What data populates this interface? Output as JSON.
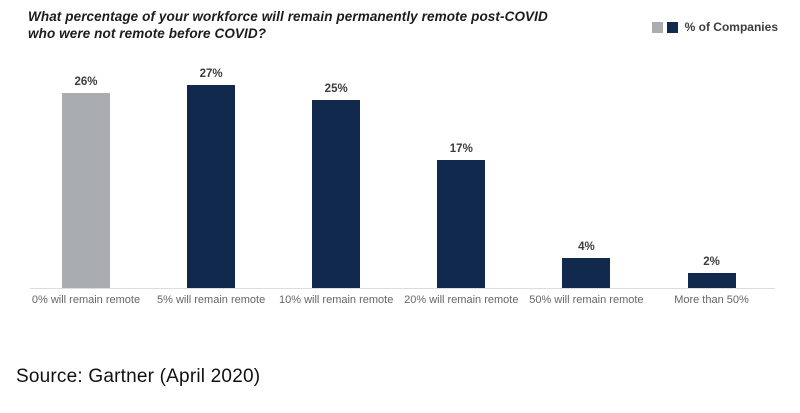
{
  "header": {
    "title_line1": "What percentage of your workforce will remain permanently remote post-COVID",
    "title_line2": "who were not remote before COVID?"
  },
  "legend": {
    "label": "% of Companies",
    "swatch_gray_color": "#a9adb0",
    "swatch_navy_color": "#12294e"
  },
  "footer": {
    "source": "Source: Gartner (April 2020)"
  },
  "colors": {
    "bar_navy": "#12294e",
    "bar_gray": "#a9adb0",
    "axis_line": "#dcdcdc",
    "value_label": "#3d3d3d",
    "category_label": "#666666"
  },
  "chart_data": {
    "type": "bar",
    "title": "What percentage of your workforce will remain permanently remote post-COVID who were not remote before COVID?",
    "categories": [
      "0% will remain remote",
      "5% will remain remote",
      "10% will remain remote",
      "20% will remain remote",
      "50% will remain remote",
      "More than 50%"
    ],
    "values": [
      26,
      27,
      25,
      17,
      4,
      2
    ],
    "value_labels": [
      "26%",
      "27%",
      "25%",
      "17%",
      "4%",
      "2%"
    ],
    "bar_colors": [
      "#a9adb0",
      "#12294e",
      "#12294e",
      "#12294e",
      "#12294e",
      "#12294e"
    ],
    "series": [
      {
        "name": "% of Companies",
        "values": [
          26,
          27,
          25,
          17,
          4,
          2
        ]
      }
    ],
    "xlabel": "",
    "ylabel": "",
    "ylim": [
      0,
      30
    ],
    "grid": false,
    "legend_entries": [
      "% of Companies"
    ],
    "legend_position": "top-right",
    "source": "Source: Gartner (April 2020)"
  }
}
